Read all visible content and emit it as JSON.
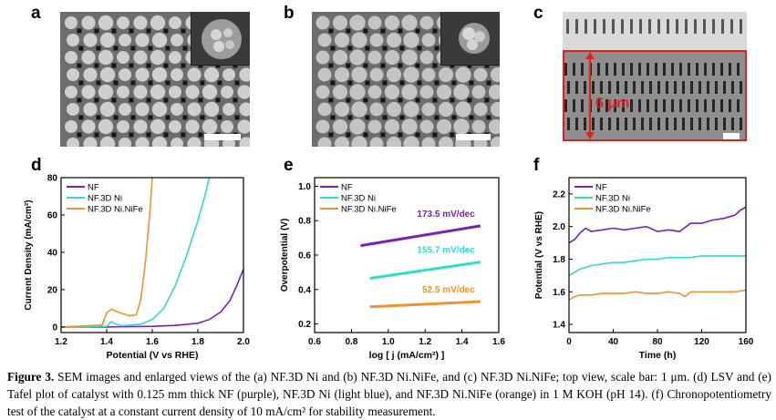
{
  "panels": {
    "a": {
      "letter": "a"
    },
    "b": {
      "letter": "b"
    },
    "c": {
      "letter": "c",
      "height_label": "6 μm"
    },
    "d": {
      "letter": "d"
    },
    "e": {
      "letter": "e"
    },
    "f": {
      "letter": "f"
    }
  },
  "colors": {
    "nf": "#7b1fb7",
    "ni": "#2fdcc8",
    "nife": "#f0922e",
    "highlight": "#e0201b"
  },
  "chart_data": [
    {
      "type": "line",
      "panel": "d",
      "xlabel": "Potential (V vs RHE)",
      "ylabel": "Current Density (mA/cm²)",
      "xlim": [
        1.2,
        2.0
      ],
      "ylim": [
        -3,
        80
      ],
      "xticks": [
        "1.2",
        "1.4",
        "1.6",
        "1.8",
        "2.0"
      ],
      "yticks": [
        "0",
        "20",
        "40",
        "60",
        "80"
      ],
      "legend": [
        "NF",
        "NF.3D Ni",
        "NF.3D Ni.NiFe"
      ],
      "series": [
        {
          "name": "NF",
          "color": "#7b1fb7",
          "x": [
            1.2,
            1.4,
            1.6,
            1.7,
            1.8,
            1.85,
            1.9,
            1.94,
            1.97,
            2.0
          ],
          "y": [
            0,
            0,
            0.3,
            0.8,
            2,
            4,
            8,
            14,
            22,
            31
          ]
        },
        {
          "name": "NF.3D Ni",
          "color": "#2fdcc8",
          "x": [
            1.2,
            1.4,
            1.42,
            1.44,
            1.47,
            1.55,
            1.6,
            1.65,
            1.7,
            1.75,
            1.8,
            1.83,
            1.85
          ],
          "y": [
            0,
            0.3,
            2.8,
            1.5,
            0.6,
            1.5,
            4,
            10,
            22,
            38,
            57,
            70,
            80
          ]
        },
        {
          "name": "NF.3D Ni.NiFe",
          "color": "#f0922e",
          "x": [
            1.2,
            1.38,
            1.4,
            1.42,
            1.45,
            1.5,
            1.53,
            1.55,
            1.57,
            1.59,
            1.6
          ],
          "y": [
            0,
            1,
            7.5,
            9.5,
            8,
            6,
            6.5,
            15,
            35,
            62,
            80
          ]
        }
      ]
    },
    {
      "type": "line",
      "panel": "e",
      "xlabel": "log [ j (mA/cm²) ]",
      "ylabel": "Overpotential (V)",
      "xlim": [
        0.6,
        1.6
      ],
      "ylim": [
        0.15,
        1.05
      ],
      "xticks": [
        "0.6",
        "0.8",
        "1.0",
        "1.2",
        "1.4",
        "1.6"
      ],
      "yticks": [
        "0.2",
        "0.4",
        "0.6",
        "0.8",
        "1.0"
      ],
      "legend": [
        "NF",
        "NF.3D Ni",
        "NF.3D Ni.NiFe"
      ],
      "annotations": [
        "173.5 mV/dec",
        "155.7 mV/dec",
        "52.5 mV/dec"
      ],
      "series": [
        {
          "name": "NF",
          "color": "#7b1fb7",
          "x": [
            0.85,
            1.5
          ],
          "y": [
            0.655,
            0.77
          ]
        },
        {
          "name": "NF.3D Ni",
          "color": "#2fdcc8",
          "x": [
            0.9,
            1.5
          ],
          "y": [
            0.465,
            0.56
          ]
        },
        {
          "name": "NF.3D Ni.NiFe",
          "color": "#f0922e",
          "x": [
            0.9,
            1.5
          ],
          "y": [
            0.3,
            0.33
          ]
        }
      ]
    },
    {
      "type": "line",
      "panel": "f",
      "xlabel": "Time (h)",
      "ylabel": "Potential (V vs RHE)",
      "xlim": [
        0,
        160
      ],
      "ylim": [
        1.35,
        2.3
      ],
      "xticks": [
        "0",
        "40",
        "80",
        "120",
        "160"
      ],
      "yticks": [
        "1.4",
        "1.6",
        "1.8",
        "2.0",
        "2.2"
      ],
      "legend": [
        "NF",
        "NF.3D Ni",
        "NF.3D Ni.NiFe"
      ],
      "series": [
        {
          "name": "NF",
          "color": "#7b1fb7",
          "x": [
            0,
            5,
            10,
            15,
            20,
            30,
            40,
            50,
            60,
            70,
            80,
            90,
            100,
            110,
            120,
            130,
            140,
            150,
            155,
            160
          ],
          "y": [
            1.9,
            1.92,
            1.96,
            1.99,
            1.97,
            1.98,
            1.99,
            1.98,
            1.99,
            2.0,
            1.97,
            1.98,
            1.97,
            2.02,
            2.02,
            2.04,
            2.05,
            2.07,
            2.1,
            2.12
          ]
        },
        {
          "name": "NF.3D Ni",
          "color": "#2fdcc8",
          "x": [
            0,
            5,
            10,
            20,
            30,
            40,
            50,
            60,
            70,
            80,
            90,
            100,
            110,
            120,
            130,
            140,
            150,
            160
          ],
          "y": [
            1.7,
            1.72,
            1.74,
            1.76,
            1.77,
            1.78,
            1.78,
            1.79,
            1.8,
            1.8,
            1.81,
            1.81,
            1.81,
            1.82,
            1.82,
            1.82,
            1.82,
            1.82
          ]
        },
        {
          "name": "NF.3D Ni.NiFe",
          "color": "#f0922e",
          "x": [
            0,
            5,
            10,
            20,
            30,
            40,
            50,
            60,
            70,
            80,
            90,
            100,
            105,
            110,
            120,
            130,
            140,
            150,
            160
          ],
          "y": [
            1.55,
            1.57,
            1.58,
            1.58,
            1.59,
            1.59,
            1.59,
            1.6,
            1.59,
            1.59,
            1.6,
            1.59,
            1.57,
            1.6,
            1.6,
            1.6,
            1.6,
            1.6,
            1.61
          ]
        }
      ]
    }
  ],
  "caption": {
    "prefix": "Figure 3.",
    "text": " SEM images and enlarged views of the (a) NF.3D Ni and (b) NF.3D Ni.NiFe, and (c) NF.3D Ni.NiFe; top view, scale bar: 1 μm. (d) LSV and (e) Tafel plot of catalyst with 0.125 mm thick NF (purple), NF.3D Ni (light blue), and NF.3D Ni.NiFe (orange) in 1 M KOH (pH 14). (f) Chronopotentiometry test of the catalyst at a constant current density of 10 mA/cm² for stability measurement."
  }
}
